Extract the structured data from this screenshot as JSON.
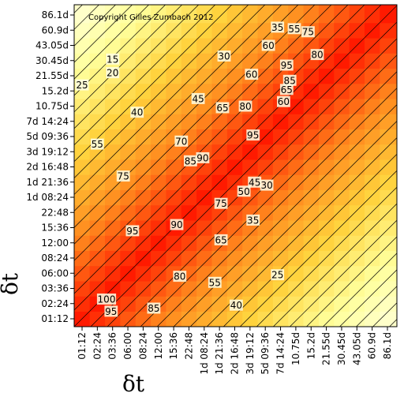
{
  "chart_data": {
    "type": "heatmap",
    "title": "",
    "copyright": "Copyright Gilles Zumbach 2012",
    "xlabel": "δt",
    "ylabel": "δt",
    "ticks": [
      "01:12",
      "02:24",
      "03:36",
      "06:00",
      "08:24",
      "12:00",
      "15:36",
      "22:48",
      "1d 08:24",
      "1d 21:36",
      "2d 16:48",
      "3d 19:12",
      "5d 09:36",
      "7d 14:24",
      "10.75d",
      "15.2d",
      "21.55d",
      "30.45d",
      "43.05d",
      "60.9d",
      "86.1d"
    ],
    "value_range": [
      0,
      100
    ],
    "colorscale": [
      "#ffffe0",
      "#ffff9a",
      "#ffd23c",
      "#ff8a1e",
      "#ff1a00"
    ],
    "contour_levels": [
      5,
      10,
      15,
      20,
      25,
      30,
      35,
      40,
      45,
      50,
      55,
      60,
      65,
      70,
      75,
      80,
      85,
      90,
      95,
      100
    ],
    "contour_labels": [
      {
        "x": 1.6,
        "y": 1.3,
        "text": "100"
      },
      {
        "x": 1.9,
        "y": 0.5,
        "text": "95"
      },
      {
        "x": 4.7,
        "y": 0.7,
        "text": "85"
      },
      {
        "x": 6.4,
        "y": 2.8,
        "text": "80"
      },
      {
        "x": 6.2,
        "y": 6.2,
        "text": "90"
      },
      {
        "x": 3.3,
        "y": 5.8,
        "text": "95"
      },
      {
        "x": 8.7,
        "y": 2.4,
        "text": "55"
      },
      {
        "x": 9.1,
        "y": 5.2,
        "text": "65"
      },
      {
        "x": 9.1,
        "y": 7.6,
        "text": "75"
      },
      {
        "x": 10.1,
        "y": 0.9,
        "text": "40"
      },
      {
        "x": 12.8,
        "y": 2.9,
        "text": "25"
      },
      {
        "x": 11.2,
        "y": 6.5,
        "text": "35"
      },
      {
        "x": 10.6,
        "y": 8.4,
        "text": "50"
      },
      {
        "x": 11.3,
        "y": 9.0,
        "text": "45"
      },
      {
        "x": 12.1,
        "y": 8.8,
        "text": "30"
      },
      {
        "x": 11.2,
        "y": 12.1,
        "text": "95"
      },
      {
        "x": 7.1,
        "y": 10.4,
        "text": "85"
      },
      {
        "x": 7.9,
        "y": 10.6,
        "text": "90"
      },
      {
        "x": 6.5,
        "y": 11.7,
        "text": "70"
      },
      {
        "x": 2.7,
        "y": 9.4,
        "text": "75"
      },
      {
        "x": 1.0,
        "y": 11.5,
        "text": "55"
      },
      {
        "x": 3.6,
        "y": 13.6,
        "text": "40"
      },
      {
        "x": 7.6,
        "y": 14.5,
        "text": "45"
      },
      {
        "x": 9.2,
        "y": 13.9,
        "text": "65"
      },
      {
        "x": 10.7,
        "y": 14.0,
        "text": "80"
      },
      {
        "x": 2.0,
        "y": 17.1,
        "text": "15"
      },
      {
        "x": 2.0,
        "y": 16.2,
        "text": "20"
      },
      {
        "x": 0.0,
        "y": 15.4,
        "text": "25"
      },
      {
        "x": 9.3,
        "y": 17.3,
        "text": "30"
      },
      {
        "x": 11.1,
        "y": 16.1,
        "text": "60"
      },
      {
        "x": 12.2,
        "y": 18.0,
        "text": "60"
      },
      {
        "x": 13.4,
        "y": 16.7,
        "text": "95"
      },
      {
        "x": 13.2,
        "y": 14.3,
        "text": "60"
      },
      {
        "x": 13.4,
        "y": 15.1,
        "text": "65"
      },
      {
        "x": 13.6,
        "y": 15.7,
        "text": "85"
      },
      {
        "x": 12.8,
        "y": 19.2,
        "text": "35"
      },
      {
        "x": 13.9,
        "y": 19.1,
        "text": "55"
      },
      {
        "x": 14.8,
        "y": 18.9,
        "text": "75"
      },
      {
        "x": 15.4,
        "y": 17.4,
        "text": "80"
      }
    ]
  }
}
